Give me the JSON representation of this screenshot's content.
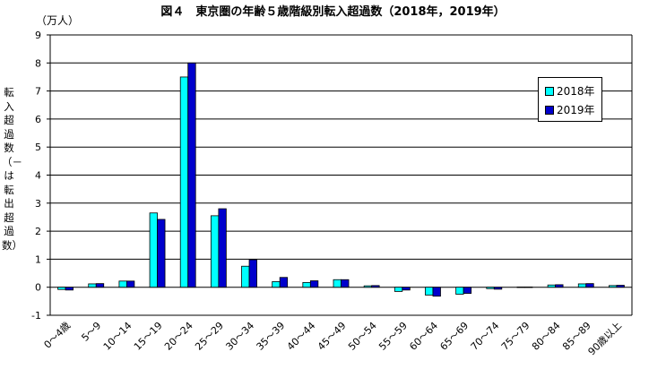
{
  "chart_data": {
    "type": "bar",
    "title": "図４　東京圏の年齢５歳階級別転入超過数（2018年，2019年）",
    "unit_label": "（万人）",
    "ylabel": "転入超過数（－は転出超過数）",
    "ylim": [
      -1,
      9
    ],
    "yticks": [
      -1,
      0,
      1,
      2,
      3,
      4,
      5,
      6,
      7,
      8,
      9
    ],
    "grid": true,
    "legend_position": "right",
    "categories": [
      "0～4歳",
      "5～9",
      "10～14",
      "15～19",
      "20～24",
      "25～29",
      "30～34",
      "35～39",
      "40～44",
      "45～49",
      "50～54",
      "55～59",
      "60～64",
      "65～69",
      "70～74",
      "75～79",
      "80～84",
      "85～89",
      "90歳以上"
    ],
    "series": [
      {
        "name": "2018年",
        "color": "#00ffff",
        "values": [
          -0.08,
          0.12,
          0.22,
          2.65,
          7.5,
          2.55,
          0.75,
          0.2,
          0.17,
          0.27,
          0.05,
          -0.15,
          -0.28,
          -0.25,
          -0.05,
          0.01,
          0.08,
          0.12,
          0.06
        ]
      },
      {
        "name": "2019年",
        "color": "#0000cc",
        "values": [
          -0.1,
          0.13,
          0.22,
          2.42,
          8.0,
          2.8,
          0.98,
          0.35,
          0.23,
          0.27,
          0.06,
          -0.1,
          -0.32,
          -0.22,
          -0.07,
          0.01,
          0.09,
          0.13,
          0.07
        ]
      }
    ]
  }
}
